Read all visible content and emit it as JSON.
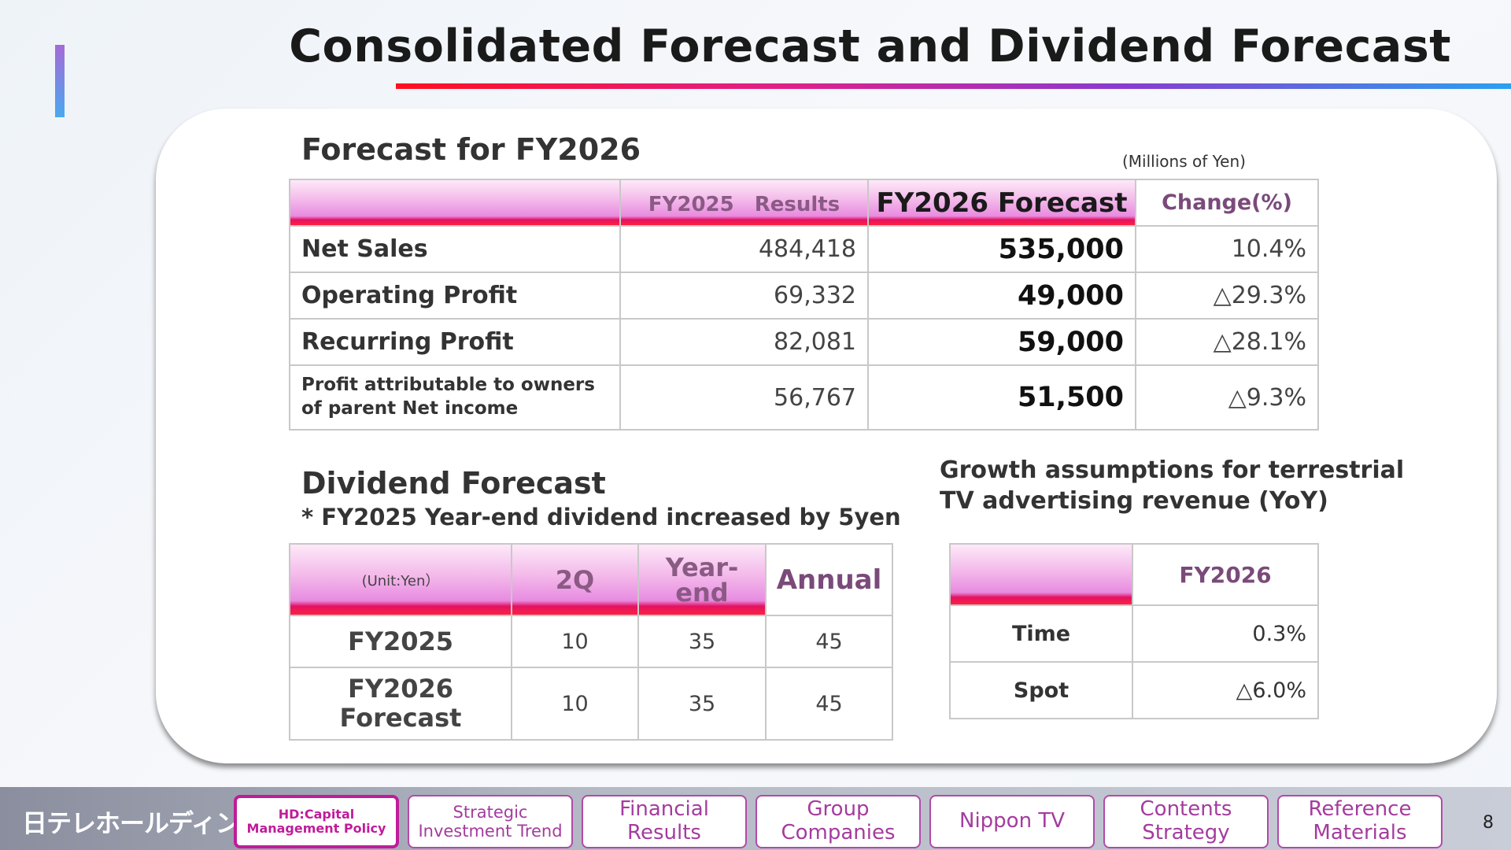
{
  "title": "Consolidated Forecast and Dividend Forecast",
  "forecast": {
    "title": "Forecast for FY2026",
    "unit": "(Millions of Yen)",
    "headers": [
      "",
      "FY2025　Results",
      "FY2026 Forecast",
      "Change(%)"
    ],
    "rows": [
      {
        "label": "Net Sales",
        "fy2025": "484,418",
        "fy2026": "535,000",
        "change": "10.4%"
      },
      {
        "label": "Operating Profit",
        "fy2025": "69,332",
        "fy2026": "49,000",
        "change": "△29.3%"
      },
      {
        "label": "Recurring Profit",
        "fy2025": "82,081",
        "fy2026": "59,000",
        "change": "△28.1%"
      },
      {
        "label_line1": "Profit attributable to owners",
        "label_line2": "of parent  Net income",
        "fy2025": "56,767",
        "fy2026": "51,500",
        "change": "△9.3%"
      }
    ]
  },
  "dividend": {
    "title": "Dividend Forecast",
    "subtitle": "* FY2025 Year-end dividend increased by 5yen",
    "headers": {
      "unit": "(Unit:Yen）",
      "q2": "2Q",
      "year_end_1": "Year-",
      "year_end_2": "end",
      "annual": "Annual"
    },
    "rows": [
      {
        "label": "FY2025",
        "q2": "10",
        "year_end": "35",
        "annual": "45"
      },
      {
        "label_line1": "FY2026",
        "label_line2": "Forecast",
        "q2": "10",
        "year_end": "35",
        "annual": "45"
      }
    ]
  },
  "growth": {
    "title_line1": "Growth assumptions for terrestrial",
    "title_line2": "TV advertising revenue (YoY)",
    "header": "FY2026",
    "rows": [
      {
        "label": "Time",
        "value": "0.3%"
      },
      {
        "label": "Spot",
        "value": "△6.0%"
      }
    ]
  },
  "footer": {
    "logo": "日テレホールディングス",
    "nav": [
      {
        "line1": "HD:Capital",
        "line2": "Management  Policy"
      },
      {
        "line1": "Strategic",
        "line2": "Investment Trend"
      },
      {
        "line1": "Financial",
        "line2": "Results"
      },
      {
        "line1": "Group",
        "line2": "Companies"
      },
      {
        "line1": "Nippon TV",
        "line2": ""
      },
      {
        "line1": "Contents",
        "line2": "Strategy"
      },
      {
        "line1": "Reference",
        "line2": "Materials"
      }
    ],
    "page_number": "8"
  },
  "colors": {
    "accent_red": "#ff1020",
    "accent_magenta": "#e0208a",
    "accent_blue": "#2aa0f0",
    "nav_border": "#b24aa8"
  }
}
